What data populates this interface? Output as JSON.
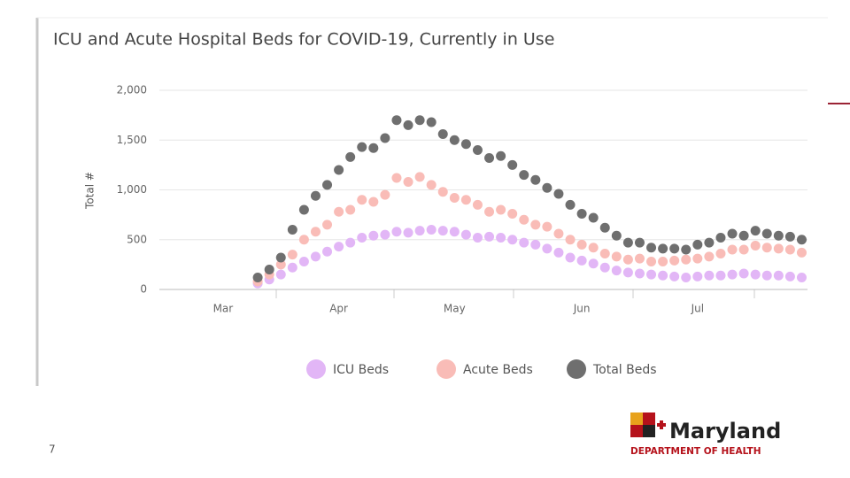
{
  "chart_data": {
    "type": "line",
    "title": "ICU and Acute Hospital Beds for COVID-19, Currently in Use",
    "y_label": "Total #",
    "categories": [
      null,
      null,
      null,
      null,
      null,
      "Mar",
      null,
      null,
      null,
      null,
      null,
      null,
      null,
      null,
      null,
      "Apr",
      null,
      null,
      null,
      null,
      null,
      null,
      null,
      null,
      null,
      "May",
      null,
      null,
      null,
      null,
      null,
      null,
      null,
      null,
      null,
      null,
      "Jun",
      null,
      null,
      null,
      null,
      null,
      null,
      null,
      null,
      null,
      "Jul",
      null,
      null,
      null,
      null,
      null,
      null,
      null,
      null,
      null
    ],
    "series": [
      {
        "name": "ICU Beds",
        "color": "#e2b6f6",
        "values": [
          null,
          null,
          null,
          null,
          null,
          null,
          null,
          null,
          60,
          100,
          150,
          220,
          280,
          330,
          380,
          430,
          470,
          520,
          540,
          550,
          580,
          570,
          590,
          600,
          590,
          580,
          550,
          520,
          530,
          520,
          500,
          470,
          450,
          410,
          370,
          320,
          290,
          260,
          220,
          190,
          170,
          160,
          150,
          140,
          130,
          120,
          130,
          140,
          140,
          150,
          160,
          150,
          140,
          140,
          130,
          120
        ]
      },
      {
        "name": "Acute Beds",
        "color": "#f9bcb7",
        "values": [
          null,
          null,
          null,
          null,
          null,
          null,
          null,
          null,
          80,
          150,
          250,
          350,
          500,
          580,
          650,
          780,
          800,
          900,
          880,
          950,
          1120,
          1080,
          1130,
          1050,
          980,
          920,
          900,
          850,
          780,
          800,
          760,
          700,
          650,
          630,
          560,
          500,
          450,
          420,
          360,
          330,
          300,
          310,
          280,
          280,
          290,
          300,
          310,
          330,
          360,
          400,
          400,
          440,
          420,
          410,
          400,
          370
        ]
      },
      {
        "name": "Total Beds",
        "color": "#6f6f6f",
        "values": [
          null,
          null,
          null,
          null,
          null,
          null,
          null,
          null,
          120,
          200,
          320,
          600,
          800,
          940,
          1050,
          1200,
          1330,
          1430,
          1420,
          1520,
          1700,
          1650,
          1700,
          1680,
          1560,
          1500,
          1460,
          1400,
          1320,
          1340,
          1250,
          1150,
          1100,
          1020,
          960,
          850,
          760,
          720,
          620,
          540,
          470,
          470,
          420,
          410,
          410,
          400,
          450,
          470,
          520,
          560,
          540,
          590,
          560,
          540,
          530,
          500
        ]
      }
    ],
    "ylim": [
      0,
      2000
    ],
    "yticks": [
      0,
      500,
      {
        "value": 1000,
        "label": "1,000"
      },
      {
        "value": 1500,
        "label": "1,500"
      },
      {
        "value": 2000,
        "label": "2,000"
      }
    ],
    "grid": true,
    "legend": "bottom"
  },
  "slide": {
    "page_number": "7",
    "logo": {
      "name": "Maryland",
      "subtitle": "DEPARTMENT OF HEALTH"
    }
  }
}
